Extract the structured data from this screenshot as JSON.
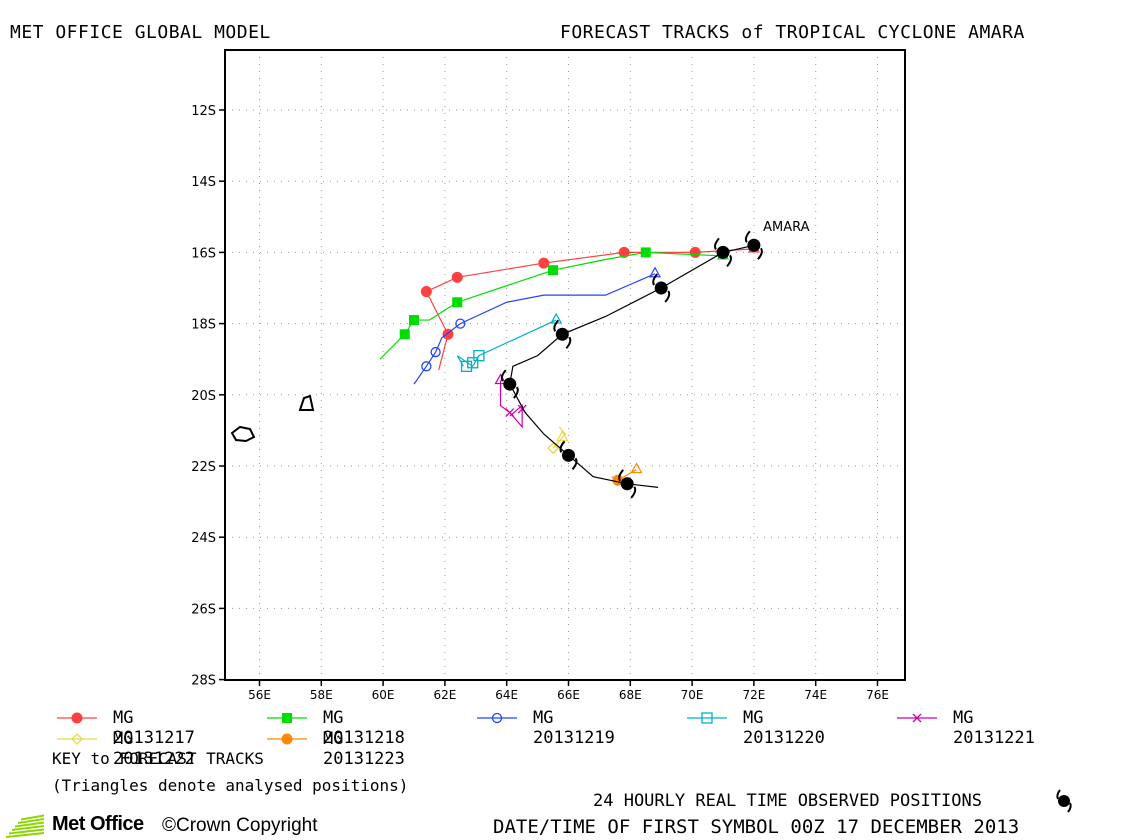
{
  "header": {
    "left_title": "MET OFFICE GLOBAL MODEL",
    "right_title": "FORECAST TRACKS of TROPICAL CYCLONE AMARA"
  },
  "chart_data": {
    "type": "line",
    "xlim": [
      55,
      77
    ],
    "ylim": [
      -28,
      -10.5
    ],
    "x_ticks": [
      56,
      58,
      60,
      62,
      64,
      66,
      68,
      70,
      72,
      74,
      76
    ],
    "x_tick_labels": [
      "56E",
      "58E",
      "60E",
      "62E",
      "64E",
      "66E",
      "68E",
      "70E",
      "72E",
      "74E",
      "76E"
    ],
    "y_ticks": [
      -12,
      -14,
      -16,
      -18,
      -20,
      -22,
      -24,
      -26,
      -28
    ],
    "y_tick_labels": [
      "12S",
      "14S",
      "16S",
      "18S",
      "20S",
      "22S",
      "24S",
      "26S",
      "28S"
    ],
    "grid": true,
    "storm_label": "AMARA",
    "observed_track": {
      "x": [
        72.0,
        71.0,
        69.0,
        67.2,
        65.8,
        65.0,
        64.2,
        64.1,
        64.6,
        65.2,
        66.0,
        66.8,
        67.9,
        68.9
      ],
      "y": [
        -15.8,
        -16.0,
        -17.0,
        -17.8,
        -18.3,
        -18.9,
        -19.2,
        -19.7,
        -20.5,
        -21.1,
        -21.7,
        -22.3,
        -22.5,
        -22.6
      ]
    },
    "observed_symbols": {
      "x": [
        72.0,
        71.0,
        69.0,
        65.8,
        64.1,
        66.0,
        67.9
      ],
      "y": [
        -15.8,
        -16.0,
        -17.0,
        -18.3,
        -19.7,
        -21.7,
        -22.5
      ]
    },
    "series": [
      {
        "name": "MG 20131217",
        "color": "#ff4040",
        "marker": "filled-circle",
        "x": [
          72.0,
          70.1,
          67.8,
          65.2,
          62.4,
          61.4,
          62.1,
          61.8
        ],
        "y": [
          -15.9,
          -16.0,
          -16.0,
          -16.3,
          -16.7,
          -17.1,
          -18.3,
          -19.3
        ],
        "marker_x": [
          70.1,
          67.8,
          65.2,
          62.4,
          61.4,
          62.1
        ],
        "marker_y": [
          -16.0,
          -16.0,
          -16.3,
          -16.7,
          -17.1,
          -18.3
        ]
      },
      {
        "name": "MG 20131218",
        "color": "#00dd00",
        "marker": "filled-square",
        "x": [
          71.0,
          68.5,
          67.2,
          65.5,
          62.4,
          61.5,
          61.0,
          60.7,
          59.9
        ],
        "y": [
          -16.1,
          -16.0,
          -16.2,
          -16.5,
          -17.4,
          -17.9,
          -17.9,
          -18.3,
          -19.0
        ],
        "marker_x": [
          68.5,
          65.5,
          62.4,
          61.0,
          60.7
        ],
        "marker_y": [
          -16.0,
          -16.5,
          -17.4,
          -17.9,
          -18.3
        ]
      },
      {
        "name": "MG 20131219",
        "color": "#2244ff",
        "marker": "open-circle",
        "x": [
          68.8,
          67.2,
          65.2,
          64.0,
          62.5,
          61.9,
          61.7,
          61.4,
          61.0
        ],
        "y": [
          -16.6,
          -17.2,
          -17.2,
          -17.4,
          -18.0,
          -18.4,
          -18.8,
          -19.2,
          -19.7
        ],
        "marker_x": [
          62.5,
          61.7,
          61.4
        ],
        "marker_y": [
          -18.0,
          -18.8,
          -19.2
        ]
      },
      {
        "name": "MG 20131220",
        "color": "#00b0c8",
        "marker": "open-square",
        "x": [
          65.6,
          64.6,
          63.1,
          62.9,
          62.4,
          62.6
        ],
        "y": [
          -17.9,
          -18.3,
          -18.9,
          -19.2,
          -18.9,
          -19.2
        ],
        "marker_x": [
          63.1,
          62.9,
          62.7
        ],
        "marker_y": [
          -18.9,
          -19.1,
          -19.2
        ]
      },
      {
        "name": "MG 20131221",
        "color": "#cc00aa",
        "marker": "cross",
        "x": [
          63.8,
          63.8,
          64.1,
          64.5,
          64.5,
          64.1
        ],
        "y": [
          -19.6,
          -20.3,
          -20.5,
          -20.9,
          -20.3,
          -20.6
        ],
        "marker_x": [
          64.1,
          64.5
        ],
        "marker_y": [
          -20.5,
          -20.4
        ]
      },
      {
        "name": "MG 20131222",
        "color": "#e8d84a",
        "marker": "open-diamond",
        "x": [
          65.8,
          65.5,
          65.9,
          65.7
        ],
        "y": [
          -21.2,
          -21.5,
          -21.1,
          -20.9
        ],
        "marker_x": [
          65.5
        ],
        "marker_y": [
          -21.5
        ]
      },
      {
        "name": "MG 20131223",
        "color": "#ff8800",
        "marker": "filled-circle",
        "x": [
          68.2,
          67.6,
          67.4
        ],
        "y": [
          -22.1,
          -22.4,
          -22.3
        ],
        "marker_x": [
          67.6
        ],
        "marker_y": [
          -22.4
        ]
      }
    ]
  },
  "legend": {
    "items": [
      {
        "label": "MG 20131217",
        "color": "#ff4040",
        "marker": "filled-circle"
      },
      {
        "label": "MG 20131218",
        "color": "#00dd00",
        "marker": "filled-square"
      },
      {
        "label": "MG 20131219",
        "color": "#2244ff",
        "marker": "open-circle"
      },
      {
        "label": "MG 20131220",
        "color": "#00b0c8",
        "marker": "open-square"
      },
      {
        "label": "MG 20131221",
        "color": "#cc00aa",
        "marker": "cross"
      },
      {
        "label": "MG 20131222",
        "color": "#e8d84a",
        "marker": "open-diamond"
      },
      {
        "label": "MG 20131223",
        "color": "#ff8800",
        "marker": "filled-circle"
      }
    ],
    "key_title": "KEY to FORECAST TRACKS",
    "key_note": "(Triangles denote analysed positions)"
  },
  "footer": {
    "observed_label": "24 HOURLY REAL TIME OBSERVED POSITIONS",
    "first_symbol_label": "DATE/TIME OF FIRST SYMBOL 00Z 17 DECEMBER 2013",
    "logo_text": "Met Office",
    "copyright": "©Crown Copyright",
    "brand_color": "#8cd600"
  }
}
